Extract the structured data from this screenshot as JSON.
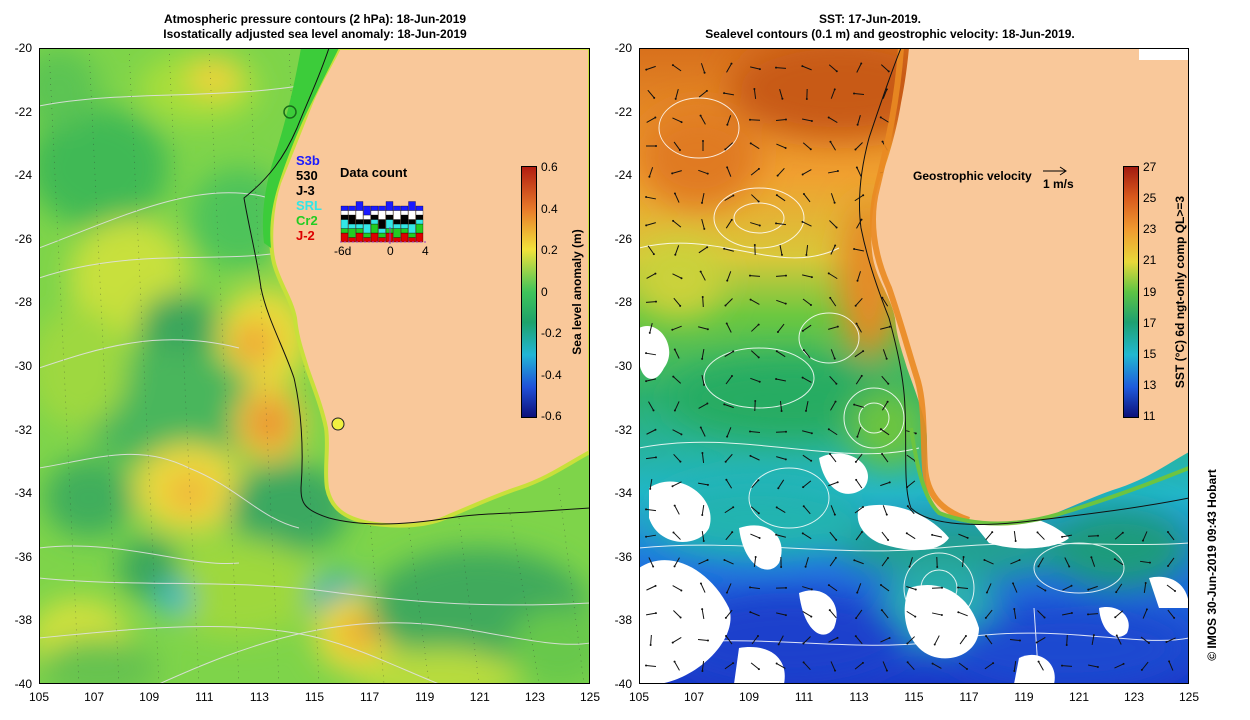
{
  "left_panel": {
    "title_line1": "Atmospheric pressure contours (2 hPa): 18-Jun-2019",
    "title_line2": "Isostatically adjusted sea level anomaly: 18-Jun-2019",
    "colorbar": {
      "label": "Sea level anomaly (m)",
      "ticks": [
        "0.6",
        "0.4",
        "0.2",
        "0",
        "-0.2",
        "-0.4",
        "-0.6"
      ]
    },
    "legend": {
      "satellites": [
        {
          "name": "S3b",
          "color": "#1a1aff"
        },
        {
          "name": "530",
          "color": "#000000"
        },
        {
          "name": "J-3",
          "color": "#000000"
        },
        {
          "name": "SRL",
          "color": "#33e6e6"
        },
        {
          "name": "Cr2",
          "color": "#22cc22"
        },
        {
          "name": "J-2",
          "color": "#dd0000"
        }
      ],
      "data_count_title": "Data count",
      "axis_labels": [
        "-6d",
        "0",
        "4"
      ]
    }
  },
  "right_panel": {
    "title_line1": "SST: 17-Jun-2019.",
    "title_line2": "Sealevel contours (0.1 m) and geostrophic velocity: 18-Jun-2019.",
    "velocity_label": "Geostrophic velocity",
    "velocity_scale": "1 m/s",
    "colorbar": {
      "label": "SST (°C) 6d ngt-only comp QL>=3",
      "ticks": [
        "27",
        "25",
        "23",
        "21",
        "19",
        "17",
        "15",
        "13",
        "11"
      ]
    }
  },
  "axes": {
    "y_ticks": [
      "-20",
      "-22",
      "-24",
      "-26",
      "-28",
      "-30",
      "-32",
      "-34",
      "-36",
      "-38",
      "-40"
    ],
    "x_ticks": [
      "105",
      "107",
      "109",
      "111",
      "113",
      "115",
      "117",
      "119",
      "121",
      "123",
      "125"
    ]
  },
  "credit": "© IMOS 30-Jun-2019 09:43 Hobart",
  "colors": {
    "land": "#f9c89a",
    "sla_green": "#6dd246",
    "sla_yellow": "#f3dc3a",
    "sst_orange": "#f0a030",
    "sst_blue": "#1f4fd8"
  }
}
